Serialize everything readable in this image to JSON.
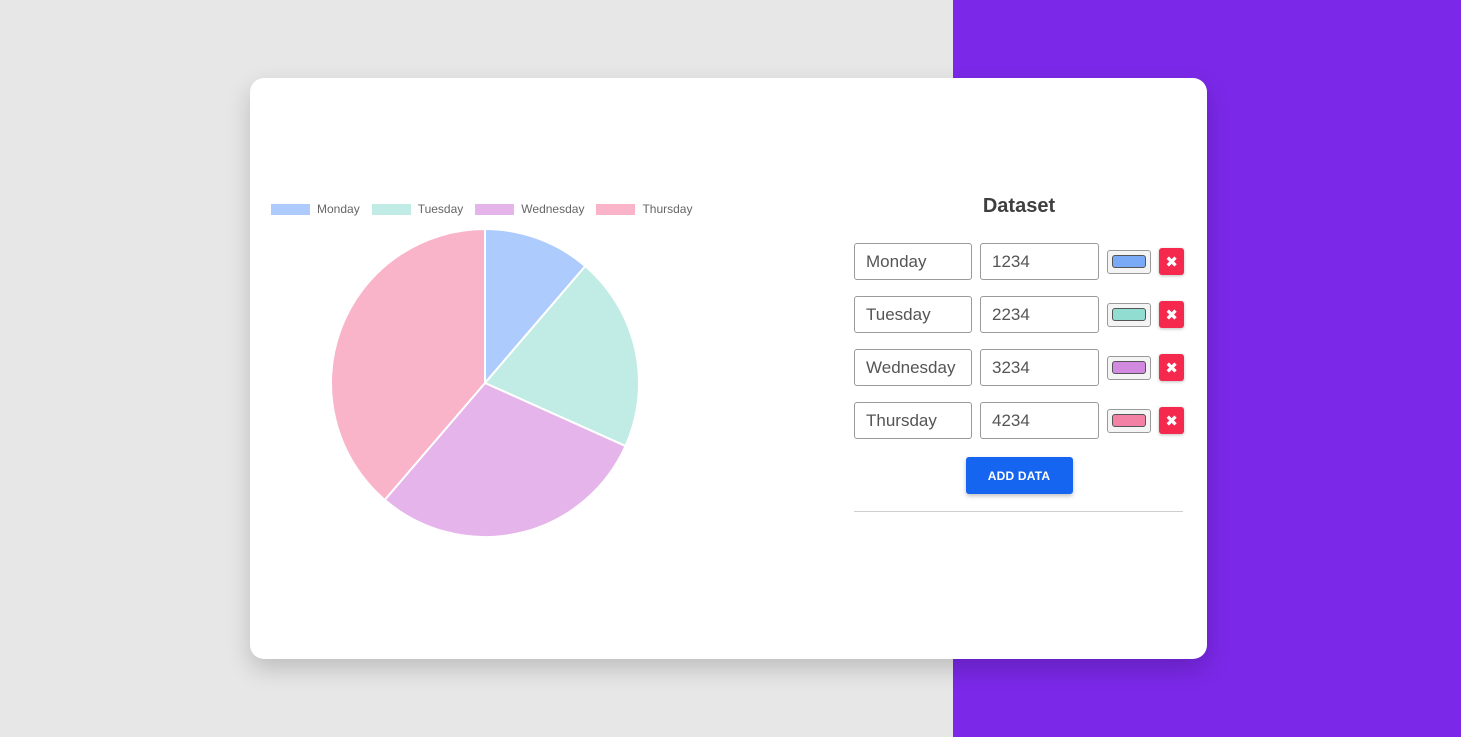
{
  "chart_data": {
    "type": "pie",
    "categories": [
      "Monday",
      "Tuesday",
      "Wednesday",
      "Thursday"
    ],
    "values": [
      1234,
      2234,
      3234,
      4234
    ],
    "colors": [
      "#aecbfd",
      "#c1ece5",
      "#e4b4ea",
      "#f9b4ca"
    ],
    "legend": "top"
  },
  "panel": {
    "title": "Dataset",
    "rows": [
      {
        "label": "Monday",
        "value": "1234",
        "color": "#7aa9f5"
      },
      {
        "label": "Tuesday",
        "value": "2234",
        "color": "#92ddd1"
      },
      {
        "label": "Wednesday",
        "value": "3234",
        "color": "#d28ae0"
      },
      {
        "label": "Thursday",
        "value": "4234",
        "color": "#f380a5"
      }
    ],
    "delete_glyph": "✖",
    "add_label": "ADD DATA"
  }
}
